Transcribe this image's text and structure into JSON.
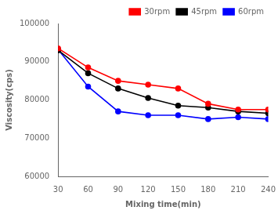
{
  "chart_data": {
    "type": "line",
    "x": [
      30,
      60,
      90,
      120,
      150,
      180,
      210,
      240
    ],
    "series": [
      {
        "name": "30rpm",
        "color": "#ff0000",
        "values": [
          93500,
          88500,
          85000,
          84000,
          83000,
          79000,
          77500,
          77500
        ]
      },
      {
        "name": "45rpm",
        "color": "#000000",
        "values": [
          93000,
          87000,
          83000,
          80500,
          78500,
          78000,
          77000,
          76500
        ]
      },
      {
        "name": "60rpm",
        "color": "#0000ff",
        "values": [
          93200,
          83500,
          77000,
          76000,
          76000,
          75000,
          75500,
          75000
        ]
      }
    ],
    "xlabel": "Mixing time(min)",
    "ylabel": "Viscosity(cps)",
    "xlim": [
      30,
      240
    ],
    "ylim": [
      60000,
      100000
    ],
    "xticks": [
      30,
      60,
      90,
      120,
      150,
      180,
      210,
      240
    ],
    "yticks": [
      60000,
      70000,
      80000,
      90000,
      100000
    ],
    "marker": "circle",
    "legend": "upper right",
    "grid": false
  }
}
